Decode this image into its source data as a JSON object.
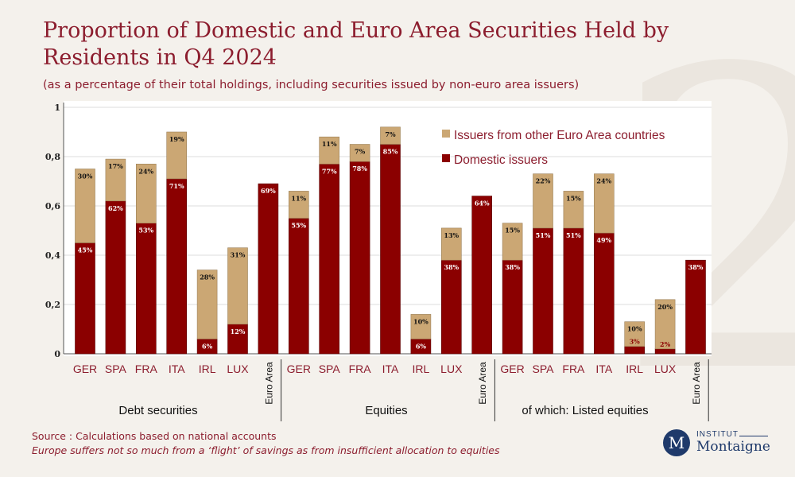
{
  "title": "Proportion of Domestic and Euro Area Securities Held by Residents in Q4 2024",
  "subtitle": "(as a percentage of their total holdings, including securities issued by non-euro area issuers)",
  "source": "Source : Calculations based on national accounts",
  "note": "Europe suffers not so much from a ‘flight’ of savings as from insufficient allocation to equities",
  "logo": {
    "line1": "INSTITUT",
    "line2": "Montaigne",
    "letter": "M"
  },
  "colors": {
    "domestic": "#8b0000",
    "euro": "#cba774",
    "text": "#8c1d2e",
    "background": "#f4f1ec"
  },
  "chart_data": {
    "type": "bar",
    "stacked": true,
    "ylim": [
      0,
      1
    ],
    "yticks": [
      "0",
      "0,2",
      "0,4",
      "0,6",
      "0,8",
      "1"
    ],
    "grid": true,
    "legend_position": "top-right",
    "series": [
      {
        "name": "Domestic issuers",
        "color": "#8b0000"
      },
      {
        "name": "Issuers from other Euro Area countries",
        "color": "#cba774"
      }
    ],
    "groups": [
      {
        "label": "Debt securities",
        "bars": [
          {
            "category": "GER",
            "domestic": 0.45,
            "domestic_label": "45%",
            "euro": 0.3,
            "euro_label": "30%"
          },
          {
            "category": "SPA",
            "domestic": 0.62,
            "domestic_label": "62%",
            "euro": 0.17,
            "euro_label": "17%"
          },
          {
            "category": "FRA",
            "domestic": 0.53,
            "domestic_label": "53%",
            "euro": 0.24,
            "euro_label": "24%"
          },
          {
            "category": "ITA",
            "domestic": 0.71,
            "domestic_label": "71%",
            "euro": 0.19,
            "euro_label": "19%"
          },
          {
            "category": "IRL",
            "domestic": 0.06,
            "domestic_label": "6%",
            "euro": 0.28,
            "euro_label": "28%"
          },
          {
            "category": "LUX",
            "domestic": 0.12,
            "domestic_label": "12%",
            "euro": 0.31,
            "euro_label": "31%"
          },
          {
            "category": "Euro Area",
            "domestic": 0.69,
            "domestic_label": "69%",
            "euro": 0,
            "euro_label": ""
          }
        ]
      },
      {
        "label": "Equities",
        "bars": [
          {
            "category": "GER",
            "domestic": 0.55,
            "domestic_label": "55%",
            "euro": 0.11,
            "euro_label": "11%"
          },
          {
            "category": "SPA",
            "domestic": 0.77,
            "domestic_label": "77%",
            "euro": 0.11,
            "euro_label": "11%"
          },
          {
            "category": "FRA",
            "domestic": 0.78,
            "domestic_label": "78%",
            "euro": 0.07,
            "euro_label": "7%"
          },
          {
            "category": "ITA",
            "domestic": 0.85,
            "domestic_label": "85%",
            "euro": 0.07,
            "euro_label": "7%"
          },
          {
            "category": "IRL",
            "domestic": 0.06,
            "domestic_label": "6%",
            "euro": 0.1,
            "euro_label": "10%"
          },
          {
            "category": "LUX",
            "domestic": 0.38,
            "domestic_label": "38%",
            "euro": 0.13,
            "euro_label": "13%"
          },
          {
            "category": "Euro Area",
            "domestic": 0.64,
            "domestic_label": "64%",
            "euro": 0,
            "euro_label": ""
          }
        ]
      },
      {
        "label": "of which: Listed equities",
        "bars": [
          {
            "category": "GER",
            "domestic": 0.38,
            "domestic_label": "38%",
            "euro": 0.15,
            "euro_label": "15%"
          },
          {
            "category": "SPA",
            "domestic": 0.51,
            "domestic_label": "51%",
            "euro": 0.22,
            "euro_label": "22%"
          },
          {
            "category": "FRA",
            "domestic": 0.51,
            "domestic_label": "51%",
            "euro": 0.15,
            "euro_label": "15%"
          },
          {
            "category": "ITA",
            "domestic": 0.49,
            "domestic_label": "49%",
            "euro": 0.24,
            "euro_label": "24%"
          },
          {
            "category": "IRL",
            "domestic": 0.03,
            "domestic_label": "3%",
            "euro": 0.1,
            "euro_label": "10%"
          },
          {
            "category": "LUX",
            "domestic": 0.02,
            "domestic_label": "2%",
            "euro": 0.2,
            "euro_label": "20%"
          },
          {
            "category": "Euro Area",
            "domestic": 0.38,
            "domestic_label": "38%",
            "euro": 0,
            "euro_label": ""
          }
        ]
      }
    ]
  }
}
